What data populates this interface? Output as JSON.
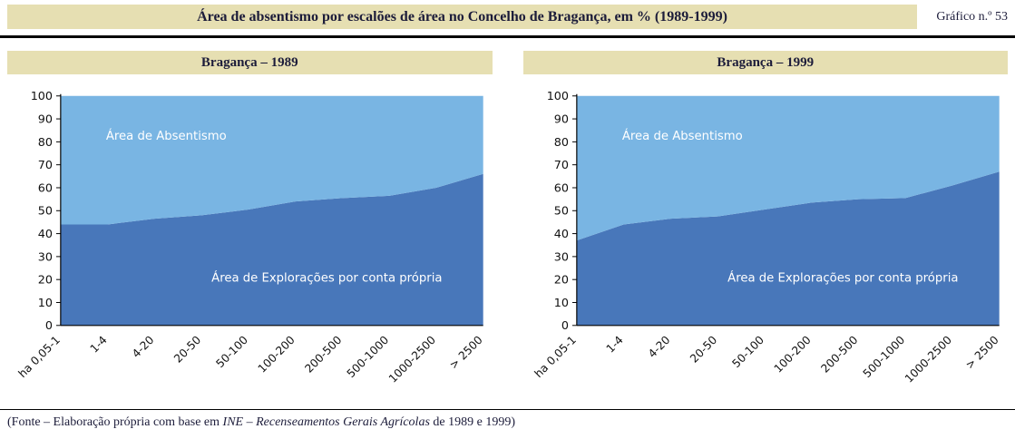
{
  "header": {
    "title": "Área de absentismo por escalões de área no Concelho de Bragança, em % (1989-1999)",
    "figure_label": "Gráfico n.º 53"
  },
  "panels": [
    {
      "title": "Bragança – 1989"
    },
    {
      "title": "Bragança – 1999"
    }
  ],
  "footer": {
    "prefix": "(Fonte – Elaboração própria com base em ",
    "italic": "INE – Recenseamentos Gerais Agrícolas",
    "suffix": " de 1989 e 1999)"
  },
  "colors": {
    "band_beige": "#e6dfb2",
    "area_dark_blue": "#4877ba",
    "area_light_blue": "#79b5e3"
  },
  "chart_data": [
    {
      "type": "area",
      "stacked": true,
      "title": "Bragança – 1989",
      "categories": [
        "ha 0,05-1",
        "1-4",
        "4-20",
        "20-50",
        "50-100",
        "100-200",
        "200-500",
        "500-1000",
        "1000-2500",
        "> 2500"
      ],
      "series": [
        {
          "name": "Área de Explorações por conta própria",
          "color": "#4877ba",
          "values": [
            44,
            44,
            46.5,
            48,
            50.5,
            54,
            55.5,
            56.5,
            60,
            66
          ]
        },
        {
          "name": "Área de Absentismo",
          "color": "#79b5e3",
          "values": [
            56,
            56,
            53.5,
            52,
            49.5,
            46,
            44.5,
            43.5,
            40,
            34
          ]
        }
      ],
      "labels": [
        {
          "text": "Área de Absentismo",
          "x": 0.25,
          "y": 81
        },
        {
          "text": "Área de Explorações por conta própria",
          "x": 0.63,
          "y": 19
        }
      ],
      "ylim": [
        0,
        100
      ],
      "ytick_step": 10,
      "xlabel": "",
      "ylabel": "",
      "grid": false,
      "legend": "none"
    },
    {
      "type": "area",
      "stacked": true,
      "title": "Bragança – 1999",
      "categories": [
        "ha 0,05-1",
        "1-4",
        "4-20",
        "20-50",
        "50-100",
        "100-200",
        "200-500",
        "500-1000",
        "1000-2500",
        "> 2500"
      ],
      "series": [
        {
          "name": "Área de Explorações por conta própria",
          "color": "#4877ba",
          "values": [
            37,
            44,
            46.5,
            47.5,
            50.5,
            53.5,
            55,
            55.5,
            61,
            67
          ]
        },
        {
          "name": "Área de Absentismo",
          "color": "#79b5e3",
          "values": [
            63,
            56,
            53.5,
            52.5,
            49.5,
            46.5,
            45,
            44.5,
            39,
            33
          ]
        }
      ],
      "labels": [
        {
          "text": "Área de Absentismo",
          "x": 0.25,
          "y": 81
        },
        {
          "text": "Área de Explorações por conta própria",
          "x": 0.63,
          "y": 19
        }
      ],
      "ylim": [
        0,
        100
      ],
      "ytick_step": 10,
      "xlabel": "",
      "ylabel": "",
      "grid": false,
      "legend": "none"
    }
  ]
}
